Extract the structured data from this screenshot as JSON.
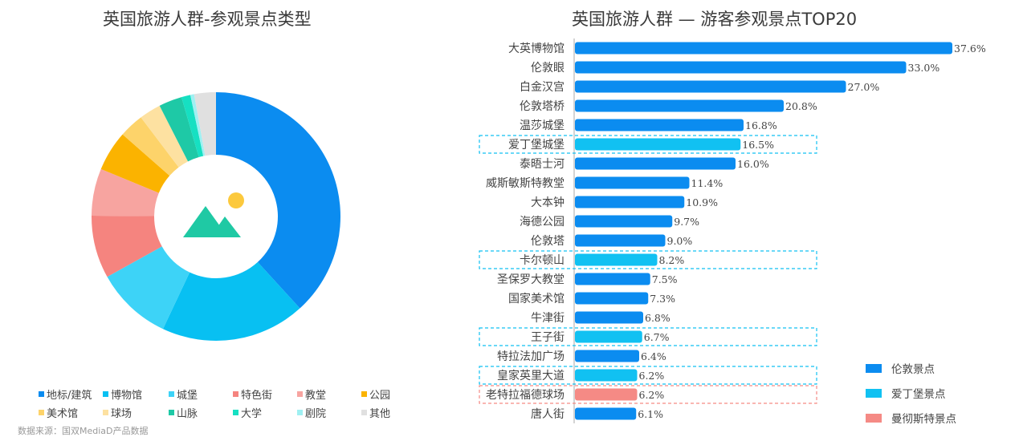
{
  "chart_data": [
    {
      "type": "pie",
      "title": "英国旅游人群-参观景点类型",
      "categories": [
        "地标/建筑",
        "博物馆",
        "城堡",
        "特色街",
        "教堂",
        "公园",
        "美术馆",
        "球场",
        "山脉",
        "大学",
        "剧院",
        "其他"
      ],
      "values": [
        39.3,
        19.3,
        10.2,
        8.4,
        6.3,
        5.4,
        3.3,
        2.9,
        3.1,
        1.2,
        0.5,
        2.9
      ],
      "colors": [
        "#0b8cf0",
        "#08c0f2",
        "#3dd3f7",
        "#f5847f",
        "#f7a4a0",
        "#fbb300",
        "#fdd36a",
        "#fde1a1",
        "#1ec9a6",
        "#16e0c2",
        "#9ff0f2",
        "#e0e0e0"
      ],
      "hole": "center image icon"
    },
    {
      "type": "bar",
      "orientation": "horizontal",
      "title": "英国旅游人群 — 游客参观景点TOP20",
      "categories": [
        "大英博物馆",
        "伦敦眼",
        "白金汉宫",
        "伦敦塔桥",
        "温莎城堡",
        "爱丁堡城堡",
        "泰晤士河",
        "威斯敏斯特教堂",
        "大本钟",
        "海德公园",
        "伦敦塔",
        "卡尔顿山",
        "圣保罗大教堂",
        "国家美术馆",
        "牛津街",
        "王子街",
        "特拉法加广场",
        "皇家英里大道",
        "老特拉福德球场",
        "唐人街"
      ],
      "values": [
        37.6,
        33.0,
        27.0,
        20.8,
        16.8,
        16.5,
        16.0,
        11.4,
        10.9,
        9.7,
        9.0,
        8.2,
        7.5,
        7.3,
        6.8,
        6.7,
        6.4,
        6.2,
        6.2,
        6.1
      ],
      "labels": [
        "37.6%",
        "33.0%",
        "27.0%",
        "20.8%",
        "16.8%",
        "16.5%",
        "16.0%",
        "11.4%",
        "10.9%",
        "9.7%",
        "9.0%",
        "8.2%",
        "7.5%",
        "7.3%",
        "6.8%",
        "6.7%",
        "6.4%",
        "6.2%",
        "6.2%",
        "6.1%"
      ],
      "groups": [
        "london",
        "london",
        "london",
        "london",
        "london",
        "edinburgh",
        "london",
        "london",
        "london",
        "london",
        "london",
        "edinburgh",
        "london",
        "london",
        "london",
        "edinburgh",
        "london",
        "edinburgh",
        "manchester",
        "london"
      ],
      "group_colors": {
        "london": "#0b8cf0",
        "edinburgh": "#11c1f2",
        "manchester": "#f58a85"
      },
      "xlim": [
        0,
        38.5
      ],
      "unit": "%",
      "legend": [
        {
          "key": "london",
          "label": "伦敦景点",
          "color": "#0b8cf0"
        },
        {
          "key": "edinburgh",
          "label": "爱丁堡景点",
          "color": "#11c1f2"
        },
        {
          "key": "manchester",
          "label": "曼彻斯特景点",
          "color": "#f58a85"
        }
      ],
      "legend_position": "bottom-right"
    }
  ],
  "source": "数据来源：国双MediaD产品数据"
}
